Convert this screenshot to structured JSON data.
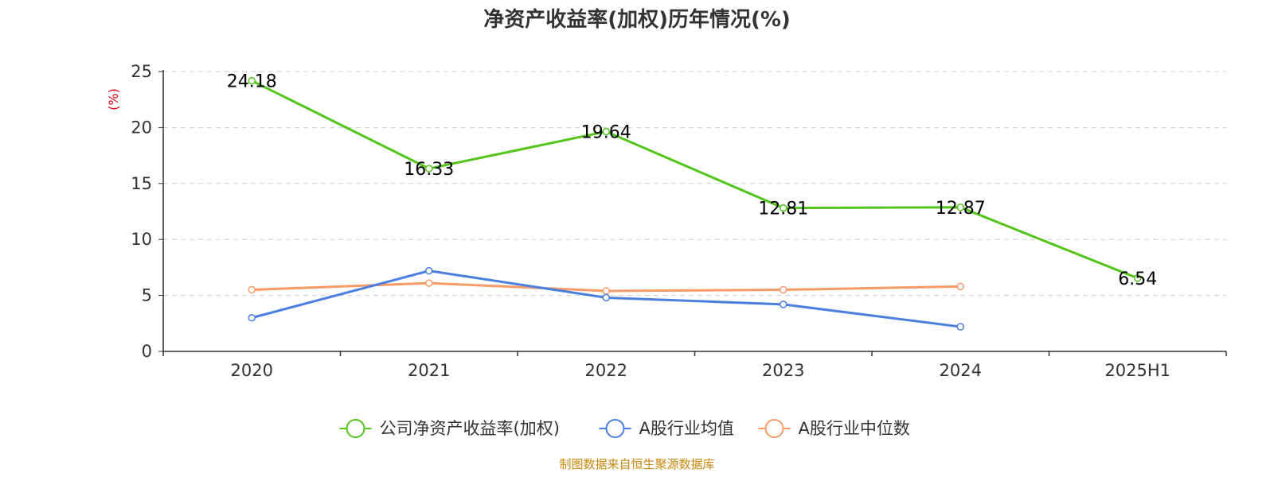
{
  "chart_data": {
    "type": "line",
    "title": "净资产收益率(加权)历年情况(%)",
    "ylabel": "(%)",
    "categories": [
      "2020",
      "2021",
      "2022",
      "2023",
      "2024",
      "2025H1"
    ],
    "ylim": [
      0,
      25
    ],
    "yticks": [
      0,
      5,
      10,
      15,
      20,
      25
    ],
    "grid": true,
    "legend_position": "bottom",
    "series": [
      {
        "name": "公司净资产收益率(加权)",
        "color": "#52c41a",
        "values": [
          24.18,
          16.33,
          19.64,
          12.81,
          12.87,
          6.54
        ],
        "show_labels": true
      },
      {
        "name": "A股行业均值",
        "color": "#4a7ee0",
        "values": [
          3.0,
          7.2,
          4.8,
          4.2,
          2.2,
          null
        ],
        "show_labels": false
      },
      {
        "name": "A股行业中位数",
        "color": "#f79a66",
        "values": [
          5.5,
          6.1,
          5.4,
          5.5,
          5.8,
          null
        ],
        "show_labels": false
      }
    ],
    "source": "制图数据来自恒生聚源数据库",
    "colors": {
      "axis": "#333333",
      "grid": "#cccccc",
      "unit_label": "#e60012",
      "source": "#c8860a"
    }
  }
}
